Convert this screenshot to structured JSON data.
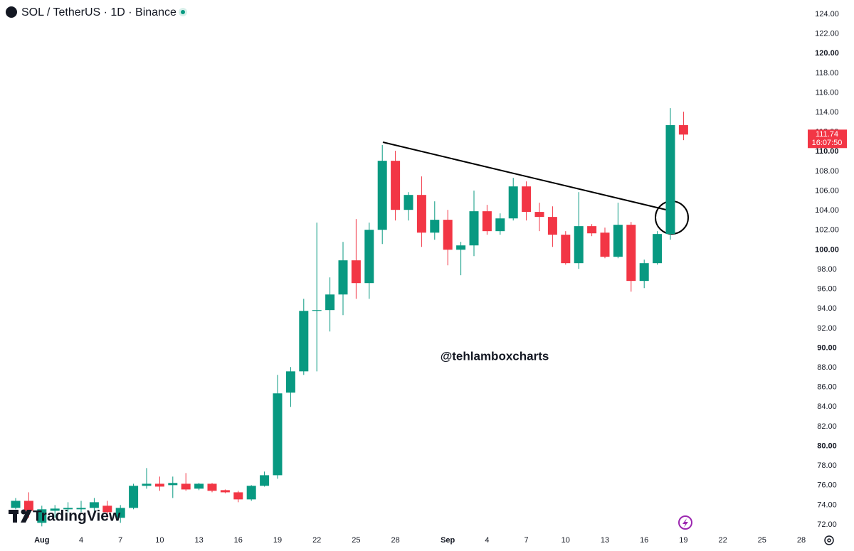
{
  "chart_data": {
    "type": "candlestick",
    "title": "SOL / TetherUS · 1D · Binance",
    "watermark": "@tehlamboxcharts",
    "logo": "TradingView",
    "up_color": "#089981",
    "down_color": "#f23645",
    "categories": [
      null,
      null,
      "Aug",
      null,
      null,
      "4",
      null,
      null,
      "7",
      null,
      null,
      "10",
      null,
      null,
      "13",
      null,
      null,
      "16",
      null,
      null,
      "19",
      null,
      null,
      "22",
      null,
      null,
      "25",
      null,
      null,
      "28",
      null,
      null,
      null,
      "Sep",
      null,
      null,
      "4",
      null,
      null,
      "7",
      null,
      null,
      "10",
      null,
      null,
      "13",
      null,
      null,
      "16",
      null,
      null,
      "19",
      null,
      null,
      "22",
      null,
      null,
      "25",
      null,
      null,
      "28"
    ],
    "open": [
      73.71,
      74.43,
      72.19,
      73.42,
      73.57,
      73.57,
      73.71,
      73.93,
      72.7,
      73.71,
      75.96,
      76.17,
      76.03,
      76.17,
      75.67,
      76.17,
      75.52,
      75.3,
      74.58,
      75.96,
      77.04,
      85.45,
      87.62,
      93.78,
      93.86,
      95.45,
      98.93,
      96.61,
      102.04,
      109.07,
      104.07,
      105.59,
      101.75,
      103.06,
      100.01,
      100.45,
      103.93,
      101.9,
      103.2,
      106.46,
      103.86,
      103.35,
      101.54,
      98.64,
      102.41,
      101.75,
      99.29,
      102.55,
      96.83,
      98.64,
      101.61,
      112.7,
      null,
      null,
      null,
      null,
      null,
      null,
      null,
      null,
      null
    ],
    "high": [
      74.72,
      75.3,
      73.93,
      74.0,
      74.29,
      74.43,
      74.72,
      74.43,
      74.0,
      76.17,
      77.77,
      76.9,
      76.9,
      77.26,
      76.25,
      76.25,
      75.59,
      75.45,
      76.03,
      77.41,
      87.26,
      88.06,
      95.01,
      102.77,
      97.19,
      100.81,
      103.13,
      102.77,
      110.67,
      110.09,
      105.88,
      107.48,
      104.94,
      104.07,
      100.81,
      106.03,
      104.58,
      103.71,
      107.33,
      106.97,
      104.8,
      104.43,
      101.9,
      105.88,
      102.62,
      102.26,
      104.8,
      102.84,
      99.0,
      101.9,
      114.43,
      114.07,
      null,
      null,
      null,
      null,
      null,
      null,
      null,
      null,
      null
    ],
    "low": [
      73.57,
      72.7,
      71.83,
      72.7,
      73.28,
      73.28,
      73.42,
      72.7,
      72.19,
      73.57,
      75.67,
      75.45,
      74.72,
      75.45,
      75.52,
      75.3,
      75.2,
      74.29,
      74.43,
      75.88,
      76.68,
      84.0,
      87.26,
      87.62,
      91.68,
      93.35,
      95.01,
      95.01,
      100.59,
      102.99,
      102.99,
      100.3,
      101.03,
      98.42,
      97.41,
      99.36,
      101.54,
      101.54,
      102.99,
      102.99,
      101.9,
      100.3,
      98.49,
      98.06,
      101.39,
      99.14,
      99.14,
      95.74,
      96.1,
      98.49,
      101.03,
      111.17,
      null,
      null,
      null,
      null,
      null,
      null,
      null,
      null,
      null
    ],
    "close": [
      74.43,
      73.42,
      73.57,
      73.64,
      73.71,
      73.71,
      74.29,
      73.28,
      73.71,
      75.96,
      76.17,
      75.88,
      76.25,
      75.59,
      76.17,
      75.45,
      75.3,
      74.58,
      75.96,
      77.04,
      85.38,
      87.62,
      93.78,
      93.86,
      95.45,
      98.93,
      96.61,
      102.04,
      109.07,
      104.07,
      105.59,
      101.75,
      103.06,
      100.01,
      100.45,
      103.93,
      101.9,
      103.2,
      106.46,
      103.86,
      103.35,
      101.54,
      98.64,
      102.41,
      101.68,
      99.29,
      102.55,
      96.83,
      98.64,
      101.61,
      112.7,
      111.74,
      null,
      null,
      null,
      null,
      null,
      null,
      null,
      null,
      null
    ],
    "last_price": 111.74,
    "countdown": "16:07:50",
    "ylim": [
      72,
      124
    ],
    "yticks": [
      {
        "value": 72,
        "label": "72.00"
      },
      {
        "value": 74,
        "label": "74.00"
      },
      {
        "value": 76,
        "label": "76.00"
      },
      {
        "value": 78,
        "label": "78.00"
      },
      {
        "value": 80,
        "label": "80.00"
      },
      {
        "value": 82,
        "label": "82.00"
      },
      {
        "value": 84,
        "label": "84.00"
      },
      {
        "value": 86,
        "label": "86.00"
      },
      {
        "value": 88,
        "label": "88.00"
      },
      {
        "value": 90,
        "label": "90.00"
      },
      {
        "value": 92,
        "label": "92.00"
      },
      {
        "value": 94,
        "label": "94.00"
      },
      {
        "value": 96,
        "label": "96.00"
      },
      {
        "value": 98,
        "label": "98.00"
      },
      {
        "value": 100,
        "label": "100.00"
      },
      {
        "value": 102,
        "label": "102.00"
      },
      {
        "value": 104,
        "label": "104.00"
      },
      {
        "value": 106,
        "label": "106.00"
      },
      {
        "value": 108,
        "label": "108.00"
      },
      {
        "value": 110,
        "label": "110.00"
      },
      {
        "value": 112,
        "label": "112.00"
      },
      {
        "value": 114,
        "label": "114.00"
      },
      {
        "value": 116,
        "label": "116.00"
      },
      {
        "value": 118,
        "label": "118.00"
      },
      {
        "value": 120,
        "label": "120.00"
      },
      {
        "value": 122,
        "label": "122.00"
      },
      {
        "value": 124,
        "label": "124.00"
      }
    ]
  }
}
